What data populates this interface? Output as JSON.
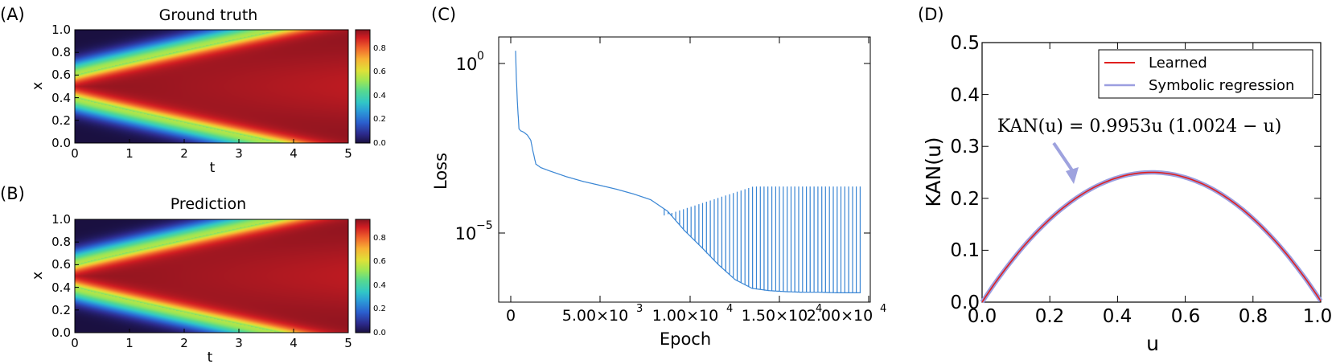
{
  "panels": {
    "A": {
      "letter": "(A)",
      "title": "Ground truth",
      "xlabel": "t",
      "ylabel": "x",
      "xticks": [
        "0",
        "1",
        "2",
        "3",
        "4",
        "5"
      ],
      "yticks": [
        "0.0",
        "0.2",
        "0.4",
        "0.6",
        "0.8",
        "1.0"
      ],
      "cbar_ticks": [
        "0.0",
        "0.2",
        "0.4",
        "0.6",
        "0.8"
      ]
    },
    "B": {
      "letter": "(B)",
      "title": "Prediction",
      "xlabel": "t",
      "ylabel": "x",
      "xticks": [
        "0",
        "1",
        "2",
        "3",
        "4",
        "5"
      ],
      "yticks": [
        "0.0",
        "0.2",
        "0.4",
        "0.6",
        "0.8",
        "1.0"
      ],
      "cbar_ticks": [
        "0.0",
        "0.2",
        "0.4",
        "0.6",
        "0.8"
      ]
    },
    "C": {
      "letter": "(C)",
      "xlabel": "Epoch",
      "ylabel": "Loss",
      "ytick_mantissa": [
        "10",
        "10"
      ],
      "ytick_exponents": [
        "0",
        "−5"
      ],
      "xticks": [
        "0",
        "5.00×10",
        "1.00×10",
        "1.50×10",
        "2.00×10"
      ],
      "xtick_exponents": [
        "",
        "3",
        "4",
        "4",
        "4"
      ]
    },
    "D": {
      "letter": "(D)",
      "xlabel": "u",
      "ylabel": "KAN(u)",
      "xticks": [
        "0.0",
        "0.2",
        "0.4",
        "0.6",
        "0.8",
        "1.0"
      ],
      "yticks": [
        "0.0",
        "0.1",
        "0.2",
        "0.3",
        "0.4",
        "0.5"
      ],
      "annotation": "KAN(u) = 0.9953u (1.0024 − u)",
      "legend": [
        "Learned",
        "Symbolic regression"
      ]
    }
  },
  "colors": {
    "loss_line": "#3a86d4",
    "learned": "#e0201f",
    "symbolic": "#9b9ee0",
    "arrow": "#9ea2de"
  },
  "chart_data": [
    {
      "type": "heatmap",
      "title": "Ground truth",
      "xlabel": "t",
      "ylabel": "x",
      "xlim": [
        0,
        5
      ],
      "ylim": [
        0,
        1
      ],
      "colorbar": {
        "colormap": "jet",
        "range": [
          0,
          0.95
        ],
        "ticks": [
          0.0,
          0.2,
          0.4,
          0.6,
          0.8
        ]
      },
      "description_values": {
        "peak_x": 0.5,
        "initial_max": 0.95,
        "late_value_at_center": 0.9,
        "late_value_at_boundary": 0.0
      }
    },
    {
      "type": "heatmap",
      "title": "Prediction",
      "xlabel": "t",
      "ylabel": "x",
      "xlim": [
        0,
        5
      ],
      "ylim": [
        0,
        1
      ],
      "colorbar": {
        "colormap": "jet",
        "range": [
          0,
          0.95
        ],
        "ticks": [
          0.0,
          0.2,
          0.4,
          0.6,
          0.8
        ]
      },
      "description_values": {
        "peak_x": 0.5,
        "initial_max": 0.95,
        "late_value_at_center": 0.9,
        "late_value_at_boundary": 0.0
      }
    },
    {
      "type": "line",
      "xlabel": "Epoch",
      "ylabel": "Loss",
      "yscale": "log",
      "xlim": [
        -1000,
        21000
      ],
      "ylim": [
        1e-08,
        15
      ],
      "series": [
        {
          "x": [
            0,
            50,
            100,
            200,
            300,
            500,
            700,
            900,
            1000,
            1200,
            1500,
            2000,
            3000,
            4000,
            5000,
            6000,
            7000,
            8000,
            9000,
            10000,
            11000,
            12000,
            13000,
            14000,
            15000,
            16000,
            17000,
            18000,
            19000,
            20000
          ],
          "y": [
            5,
            0.5,
            0.1,
            0.01,
            0.0085,
            0.0075,
            0.006,
            0.004,
            0.002,
            0.0006,
            0.00045,
            0.00035,
            0.00022,
            0.00015,
            0.00011,
            8e-05,
            5.5e-05,
            3.5e-05,
            1.4e-05,
            3e-06,
            8e-07,
            2e-07,
            6e-08,
            3e-08,
            2.5e-08,
            2.3e-08,
            2.2e-08,
            2.2e-08,
            2.1e-08,
            2.1e-08
          ]
        }
      ],
      "spikes": {
        "start_epoch": 8800,
        "end_epoch": 20400,
        "count": 52,
        "peak_value_range": [
          1e-05,
          0.0001
        ]
      }
    },
    {
      "type": "line",
      "xlabel": "u",
      "ylabel": "KAN(u)",
      "xlim": [
        0,
        1
      ],
      "ylim": [
        0,
        0.5
      ],
      "legend_position": "top-right",
      "series": [
        {
          "name": "Learned",
          "formula": "0.9953*u*(1.0024-u)",
          "x": [
            0,
            0.1,
            0.2,
            0.3,
            0.4,
            0.5,
            0.6,
            0.7,
            0.8,
            0.9,
            1.0
          ],
          "y": [
            0,
            0.09,
            0.16,
            0.21,
            0.24,
            0.25,
            0.24,
            0.21,
            0.16,
            0.09,
            0.0
          ]
        },
        {
          "name": "Symbolic regression",
          "x": [
            0,
            0.1,
            0.2,
            0.3,
            0.4,
            0.5,
            0.6,
            0.7,
            0.8,
            0.9,
            1.0
          ],
          "y": [
            0,
            0.09,
            0.16,
            0.21,
            0.24,
            0.25,
            0.24,
            0.21,
            0.16,
            0.09,
            0.0
          ]
        }
      ]
    }
  ]
}
